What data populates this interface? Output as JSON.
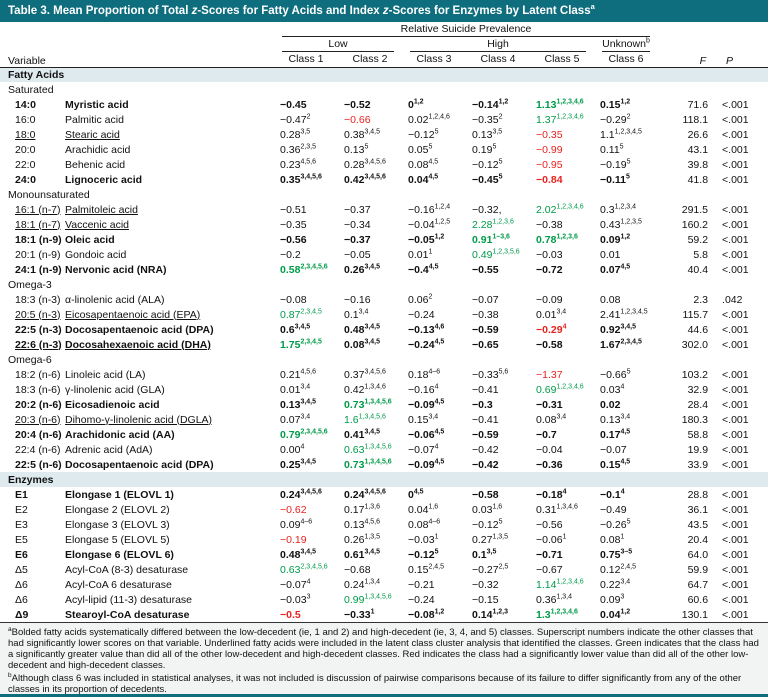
{
  "colors": {
    "teal": "#0E6E7E",
    "section": "#DFEAEE",
    "green": "#009A49",
    "red": "#E8231F"
  },
  "title_segments": [
    {
      "t": "Table 3. Mean Proportion of Total "
    },
    {
      "t": "z",
      "i": true
    },
    {
      "t": "-Scores for Fatty Acids and Index "
    },
    {
      "t": "z",
      "i": true
    },
    {
      "t": "-Scores for Enzymes by Latent Class"
    },
    {
      "t": "a",
      "sup": true
    }
  ],
  "table": {
    "header": {
      "variable": "Variable",
      "prevalence": "Relative Suicide Prevalence",
      "groups": [
        "Low",
        "High",
        "Unknown"
      ],
      "unknown_sup": "b",
      "classes": [
        "Class 1",
        "Class 2",
        "Class 3",
        "Class 4",
        "Class 5",
        "Class 6"
      ],
      "f": "F",
      "p": "P"
    },
    "rows": [
      [
        "sec",
        "Fatty Acids"
      ],
      [
        "sub",
        "Saturated"
      ],
      [
        "r",
        "14:0",
        "Myristic acid",
        "b",
        [
          [
            "−0.45",
            ""
          ],
          [
            "−0.52",
            ""
          ],
          [
            "0",
            "1,2"
          ],
          [
            "−0.14",
            "1,2"
          ],
          [
            "1.13",
            "1,2,3,4,6",
            "g"
          ],
          [
            "0.15",
            "1,2"
          ]
        ],
        "71.6",
        "<.001"
      ],
      [
        "r",
        "16:0",
        "Palmitic acid",
        "",
        [
          [
            "−0.47",
            "2"
          ],
          [
            "−0.66",
            "",
            "r"
          ],
          [
            "0.02",
            "1,2,4,6"
          ],
          [
            "−0.35",
            "2"
          ],
          [
            "1.37",
            "1,2,3,4,6",
            "g"
          ],
          [
            "−0.29",
            "2"
          ]
        ],
        "118.1",
        "<.001"
      ],
      [
        "r",
        "18:0",
        "Stearic acid",
        "u",
        [
          [
            "0.28",
            "3,5"
          ],
          [
            "0.38",
            "3,4,5"
          ],
          [
            "−0.12",
            "5"
          ],
          [
            "0.13",
            "3,5"
          ],
          [
            "−0.35",
            "",
            "r"
          ],
          [
            "1.1",
            "1,2,3,4,5"
          ]
        ],
        "26.6",
        "<.001"
      ],
      [
        "r",
        "20:0",
        "Arachidic acid",
        "",
        [
          [
            "0.36",
            "2,3,5"
          ],
          [
            "0.13",
            "5"
          ],
          [
            "0.05",
            "5"
          ],
          [
            "0.19",
            "5"
          ],
          [
            "−0.99",
            "",
            "r"
          ],
          [
            "0.11",
            "5"
          ]
        ],
        "43.1",
        "<.001"
      ],
      [
        "r",
        "22:0",
        "Behenic acid",
        "",
        [
          [
            "0.23",
            "4,5,6"
          ],
          [
            "0.28",
            "3,4,5,6"
          ],
          [
            "0.08",
            "4,5"
          ],
          [
            "−0.12",
            "5"
          ],
          [
            "−0.95",
            "",
            "r"
          ],
          [
            "−0.19",
            "5"
          ]
        ],
        "39.8",
        "<.001"
      ],
      [
        "r",
        "24:0",
        "Lignoceric acid",
        "b",
        [
          [
            "0.35",
            "3,4,5,6"
          ],
          [
            "0.42",
            "3,4,5,6"
          ],
          [
            "0.04",
            "4,5"
          ],
          [
            "−0.45",
            "5"
          ],
          [
            "−0.84",
            "",
            "r"
          ],
          [
            "−0.11",
            "5"
          ]
        ],
        "41.8",
        "<.001"
      ],
      [
        "sub",
        "Monounsaturated"
      ],
      [
        "r",
        "16:1 (n-7)",
        "Palmitoleic acid",
        "u",
        [
          [
            "−0.51",
            ""
          ],
          [
            "−0.37",
            ""
          ],
          [
            "−0.16",
            "1,2,4"
          ],
          [
            "−0.32,",
            ""
          ],
          [
            "2.02",
            "1,2,3,4,6",
            "g"
          ],
          [
            "0.3",
            "1,2,3,4"
          ]
        ],
        "291.5",
        "<.001"
      ],
      [
        "r",
        "18:1 (n-7)",
        "Vaccenic acid",
        "u",
        [
          [
            "−0.35",
            ""
          ],
          [
            "−0.34",
            ""
          ],
          [
            "−0.04",
            "1,2,5"
          ],
          [
            "2.28",
            "1,2,3,6",
            "g"
          ],
          [
            "−0.38",
            ""
          ],
          [
            "0.43",
            "1,2,3,5"
          ]
        ],
        "160.2",
        "<.001"
      ],
      [
        "r",
        "18:1 (n-9)",
        "Oleic acid",
        "b",
        [
          [
            "−0.56",
            ""
          ],
          [
            "−0.37",
            ""
          ],
          [
            "−0.05",
            "1,2"
          ],
          [
            "0.91",
            "1–3,6",
            "g"
          ],
          [
            "0.78",
            "1,2,3,6",
            "g"
          ],
          [
            "0.09",
            "1,2"
          ]
        ],
        "59.2",
        "<.001"
      ],
      [
        "r",
        "20:1 (n-9)",
        "Gondoic acid",
        "",
        [
          [
            "−0.2",
            ""
          ],
          [
            "−0.05",
            ""
          ],
          [
            "0.01",
            "1"
          ],
          [
            "0.49",
            "1,2,3,5,6",
            "g"
          ],
          [
            "−0.03",
            ""
          ],
          [
            "0.01",
            ""
          ]
        ],
        "5.8",
        "<.001"
      ],
      [
        "r",
        "24:1 (n-9)",
        "Nervonic acid (NRA)",
        "b",
        [
          [
            "0.58",
            "2,3,4,5,6",
            "g"
          ],
          [
            "0.26",
            "3,4,5"
          ],
          [
            "−0.4",
            "4,5"
          ],
          [
            "−0.55",
            ""
          ],
          [
            "−0.72",
            ""
          ],
          [
            "0.07",
            "4,5"
          ]
        ],
        "40.4",
        "<.001"
      ],
      [
        "sub",
        "Omega-3"
      ],
      [
        "r",
        "18:3 (n-3)",
        "α-linolenic acid (ALA)",
        "",
        [
          [
            "−0.08",
            ""
          ],
          [
            "−0.16",
            ""
          ],
          [
            "0.06",
            "2"
          ],
          [
            "−0.07",
            ""
          ],
          [
            "−0.09",
            ""
          ],
          [
            "0.08",
            ""
          ]
        ],
        "2.3",
        ".042"
      ],
      [
        "r",
        "20:5 (n-3)",
        "Eicosapentaenoic acid (EPA)",
        "u",
        [
          [
            "0.87",
            "2,3,4,5",
            "g"
          ],
          [
            "0.1",
            "3,4"
          ],
          [
            "−0.24",
            ""
          ],
          [
            "−0.38",
            ""
          ],
          [
            "0.01",
            "3,4"
          ],
          [
            "2.41",
            "1,2,3,4,5"
          ]
        ],
        "115.7",
        "<.001"
      ],
      [
        "r",
        "22:5 (n-3)",
        "Docosapentaenoic acid (DPA)",
        "b",
        [
          [
            "0.6",
            "3,4,5"
          ],
          [
            "0.48",
            "3,4,5"
          ],
          [
            "−0.13",
            "4,6"
          ],
          [
            "−0.59",
            ""
          ],
          [
            "−0.29",
            "4",
            "r"
          ],
          [
            "0.92",
            "3,4,5"
          ]
        ],
        "44.6",
        "<.001"
      ],
      [
        "r",
        "22:6 (n-3)",
        "Docosahexaenoic acid (DHA)",
        "bu",
        [
          [
            "1.75",
            "2,3,4,5",
            "g"
          ],
          [
            "0.08",
            "3,4,5"
          ],
          [
            "−0.24",
            "4,5"
          ],
          [
            "−0.65",
            ""
          ],
          [
            "−0.58",
            ""
          ],
          [
            "1.67",
            "2,3,4,5"
          ]
        ],
        "302.0",
        "<.001"
      ],
      [
        "sub",
        "Omega-6"
      ],
      [
        "r",
        "18:2 (n-6)",
        "Linoleic acid (LA)",
        "",
        [
          [
            "0.21",
            "4,5,6"
          ],
          [
            "0.37",
            "3,4,5,6"
          ],
          [
            "0.18",
            "4–6"
          ],
          [
            "−0.33",
            "5,6"
          ],
          [
            "−1.37",
            "",
            "r"
          ],
          [
            "−0.66",
            "5"
          ]
        ],
        "103.2",
        "<.001"
      ],
      [
        "r",
        "18:3 (n-6)",
        "γ-linolenic acid (GLA)",
        "",
        [
          [
            "0.01",
            "3,4"
          ],
          [
            "0.42",
            "1,3,4,6"
          ],
          [
            "−0.16",
            "4"
          ],
          [
            "−0.41",
            ""
          ],
          [
            "0.69",
            "1,2,3,4,6",
            "g"
          ],
          [
            "0.03",
            "4"
          ]
        ],
        "32.9",
        "<.001"
      ],
      [
        "r",
        "20:2 (n-6)",
        "Eicosadienoic acid",
        "b",
        [
          [
            "0.13",
            "3,4,5"
          ],
          [
            "0.73",
            "1,3,4,5,6",
            "g"
          ],
          [
            "−0.09",
            "4,5"
          ],
          [
            "−0.3",
            ""
          ],
          [
            "−0.31",
            ""
          ],
          [
            "0.02",
            ""
          ]
        ],
        "28.4",
        "<.001"
      ],
      [
        "r",
        "20:3 (n-6)",
        "Dihomo-γ-linolenic acid (DGLA)",
        "u",
        [
          [
            "0.07",
            "3,4"
          ],
          [
            "1.6",
            "1,3,4,5,6",
            "g"
          ],
          [
            "0.15",
            "3,4"
          ],
          [
            "−0.41",
            ""
          ],
          [
            "0.08",
            "3,4"
          ],
          [
            "0.13",
            "3,4"
          ]
        ],
        "180.3",
        "<.001"
      ],
      [
        "r",
        "20:4 (n-6)",
        "Arachidonic acid (AA)",
        "b",
        [
          [
            "0.79",
            "2,3,4,5,6",
            "g"
          ],
          [
            "0.41",
            "3,4,5"
          ],
          [
            "−0.06",
            "4,5"
          ],
          [
            "−0.59",
            ""
          ],
          [
            "−0.7",
            ""
          ],
          [
            "0.17",
            "4,5"
          ]
        ],
        "58.8",
        "<.001"
      ],
      [
        "r",
        "22:4 (n-6)",
        "Adrenic acid (AdA)",
        "",
        [
          [
            "0.00",
            "4"
          ],
          [
            "0.63",
            "1,3,4,5,6",
            "g"
          ],
          [
            "−0.07",
            "4"
          ],
          [
            "−0.42",
            ""
          ],
          [
            "−0.04",
            ""
          ],
          [
            "−0.07",
            ""
          ]
        ],
        "19.9",
        "<.001"
      ],
      [
        "r",
        "22:5 (n-6)",
        "Docosapentaenoic acid (DPA)",
        "b",
        [
          [
            "0.25",
            "3,4,5"
          ],
          [
            "0.73",
            "1,3,4,5,6",
            "g"
          ],
          [
            "−0.09",
            "4,5"
          ],
          [
            "−0.42",
            ""
          ],
          [
            "−0.36",
            ""
          ],
          [
            "0.15",
            "4,5"
          ]
        ],
        "33.9",
        "<.001"
      ],
      [
        "sec",
        "Enzymes"
      ],
      [
        "r",
        "E1",
        "Elongase 1 (ELOVL 1)",
        "b",
        [
          [
            "0.24",
            "3,4,5,6"
          ],
          [
            "0.24",
            "3,4,5,6"
          ],
          [
            "0",
            "4,5"
          ],
          [
            "−0.58",
            ""
          ],
          [
            "−0.18",
            "4"
          ],
          [
            "−0.1",
            "4"
          ]
        ],
        "28.8",
        "<.001"
      ],
      [
        "r",
        "E2",
        "Elongase 2 (ELOVL 2)",
        "",
        [
          [
            "−0.62",
            "",
            "r"
          ],
          [
            "0.17",
            "1,3,6"
          ],
          [
            "0.04",
            "1,6"
          ],
          [
            "0.03",
            "1,6"
          ],
          [
            "0.31",
            "1,3,4,6"
          ],
          [
            "−0.49",
            ""
          ]
        ],
        "36.1",
        "<.001"
      ],
      [
        "r",
        "E3",
        "Elongase 3 (ELOVL 3)",
        "",
        [
          [
            "0.09",
            "4–6"
          ],
          [
            "0.13",
            "4,5,6"
          ],
          [
            "0.08",
            "4–6"
          ],
          [
            "−0.12",
            "5"
          ],
          [
            "−0.56",
            ""
          ],
          [
            "−0.26",
            "5"
          ]
        ],
        "43.5",
        "<.001"
      ],
      [
        "r",
        "E5",
        "Elongase 5 (ELOVL 5)",
        "",
        [
          [
            "−0.19",
            "",
            "r"
          ],
          [
            "0.26",
            "1,3,5"
          ],
          [
            "−0.03",
            "1"
          ],
          [
            "0.27",
            "1,3,5"
          ],
          [
            "−0.06",
            "1"
          ],
          [
            "0.08",
            "1"
          ]
        ],
        "20.4",
        "<.001"
      ],
      [
        "r",
        "E6",
        "Elongase 6 (ELOVL 6)",
        "b",
        [
          [
            "0.48",
            "3,4,5"
          ],
          [
            "0.61",
            "3,4,5"
          ],
          [
            "−0.12",
            "5"
          ],
          [
            "0.1",
            "3,5"
          ],
          [
            "−0.71",
            ""
          ],
          [
            "0.75",
            "3–5"
          ]
        ],
        "64.0",
        "<.001"
      ],
      [
        "r",
        "Δ5",
        "Acyl-CoA (8-3) desaturase",
        "",
        [
          [
            "0.63",
            "2,3,4,5,6",
            "g"
          ],
          [
            "−0.68",
            ""
          ],
          [
            "0.15",
            "2,4,5"
          ],
          [
            "−0.27",
            "2,5"
          ],
          [
            "−0.67",
            ""
          ],
          [
            "0.12",
            "2,4,5"
          ]
        ],
        "59.9",
        "<.001"
      ],
      [
        "r",
        "Δ6",
        "Acyl-CoA 6 desaturase",
        "",
        [
          [
            "−0.07",
            "4"
          ],
          [
            "0.24",
            "1,3,4"
          ],
          [
            "−0.21",
            ""
          ],
          [
            "−0.32",
            ""
          ],
          [
            "1.14",
            "1,2,3,4,6",
            "g"
          ],
          [
            "0.22",
            "3,4"
          ]
        ],
        "64.7",
        "<.001"
      ],
      [
        "r",
        "Δ6",
        "Acyl-lipid (11-3) desaturase",
        "",
        [
          [
            "−0.03",
            "3"
          ],
          [
            "0.99",
            "1,3,4,5,6",
            "g"
          ],
          [
            "−0.24",
            ""
          ],
          [
            "−0.15",
            ""
          ],
          [
            "0.36",
            "1,3,4"
          ],
          [
            "0.09",
            "3"
          ]
        ],
        "60.6",
        "<.001"
      ],
      [
        "r",
        "Δ9",
        "Stearoyl-CoA desaturase",
        "b",
        [
          [
            "−0.5",
            "",
            "r"
          ],
          [
            "−0.33",
            "1"
          ],
          [
            "−0.08",
            "1,2"
          ],
          [
            "0.14",
            "1,2,3"
          ],
          [
            "1.3",
            "1,2,3,4,6",
            "g"
          ],
          [
            "0.04",
            "1,2"
          ]
        ],
        "130.1",
        "<.001"
      ]
    ]
  },
  "footnotes": [
    {
      "mark": "a",
      "text": "Bolded fatty acids systematically differed between the low-decedent (ie, 1 and 2) and high-decedent (ie, 3, 4, and 5) classes. Superscript numbers indicate the other classes that had significantly lower scores on that variable. Underlined fatty acids were included in the latent class cluster analysis that identified the classes. Green indicates that the class had a significantly greater value than did all of the other low-decedent and high-decedent classes. Red indicates the class had a significantly lower value than did all of the other low-decedent and high-decedent classes."
    },
    {
      "mark": "b",
      "text": "Although class 6 was included in statistical analyses, it was not included is discussion of pairwise comparisons because of its failure to differ significantly from any of the other classes in its proportion of decedents."
    }
  ]
}
